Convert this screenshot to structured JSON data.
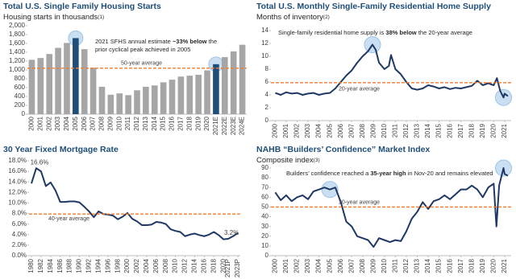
{
  "chart_data": [
    {
      "type": "bar",
      "title": "Total U.S. Single Family Housing Starts",
      "subtitle": "Housing starts in thousands",
      "footnote": "(1)",
      "categories": [
        "2000",
        "2001",
        "2002",
        "2003",
        "2004",
        "2005",
        "2006",
        "2007",
        "2008",
        "2009",
        "2010",
        "2011",
        "2012",
        "2013",
        "2014",
        "2015",
        "2016",
        "2017",
        "2018",
        "2019",
        "2020",
        "2021E",
        "2022E",
        "2023E",
        "2024E"
      ],
      "values": [
        1230,
        1270,
        1360,
        1500,
        1610,
        1720,
        1470,
        1050,
        620,
        440,
        470,
        430,
        540,
        620,
        650,
        720,
        780,
        850,
        870,
        890,
        990,
        1130,
        1290,
        1420,
        1570
      ],
      "color": "#a6a6a6",
      "highlight_color": "#1f4e79",
      "highlight_indices": [
        5,
        21
      ],
      "ylim": [
        0,
        2000
      ],
      "yticks": [
        0,
        200,
        400,
        600,
        800,
        {
          "value": 1000,
          "label": "1,000"
        },
        {
          "value": 1200,
          "label": "1,200"
        },
        {
          "value": 1400,
          "label": "1,400"
        },
        {
          "value": 1600,
          "label": "1,600"
        },
        {
          "value": 1800,
          "label": "1,800"
        },
        {
          "value": 2000,
          "label": "2,000"
        }
      ],
      "average": {
        "value": 1040,
        "label": "50-year average",
        "color": "#ed7d31"
      },
      "annotation": [
        [
          {
            "text": "2021 SFHS annual estimate "
          },
          {
            "text": "~33% below",
            "bold": true
          },
          {
            "text": " the"
          }
        ],
        [
          {
            "text": "prior cyclical peak achieved in 2005"
          }
        ]
      ]
    },
    {
      "type": "line",
      "title": "Total U.S. Monthly Single-Family Residential Home Supply",
      "subtitle": "Months of inventory",
      "footnote": "(2)",
      "x": [
        2000,
        2000.5,
        2001,
        2001.5,
        2002,
        2002.5,
        2003,
        2003.5,
        2004,
        2004.5,
        2005,
        2005.5,
        2006,
        2006.5,
        2007,
        2007.5,
        2008,
        2008.5,
        2008.9,
        2009.2,
        2009.5,
        2010,
        2010.4,
        2010.6,
        2011,
        2011.5,
        2012,
        2012.5,
        2013,
        2013.5,
        2014,
        2014.5,
        2015,
        2015.5,
        2016,
        2016.5,
        2017,
        2017.5,
        2018,
        2018.5,
        2019,
        2019.5,
        2020,
        2020.3,
        2020.6,
        2020.9,
        2021,
        2021.3
      ],
      "values": [
        4.3,
        4.0,
        4.4,
        4.2,
        4.3,
        4.0,
        4.2,
        4.3,
        4.0,
        4.2,
        4.3,
        5.0,
        6.0,
        7.0,
        7.8,
        9.0,
        10.0,
        10.8,
        11.8,
        11.0,
        9.0,
        8.0,
        8.5,
        10.2,
        8.0,
        7.2,
        6.0,
        5.0,
        4.8,
        5.0,
        5.5,
        5.3,
        5.0,
        5.2,
        4.9,
        5.1,
        5.0,
        5.2,
        5.4,
        6.2,
        5.5,
        5.8,
        5.5,
        6.6,
        4.6,
        3.6,
        4.2,
        3.8
      ],
      "color": "#1f3864",
      "highlight_indices": [
        18,
        45
      ],
      "xlim": [
        1999.6,
        2021.6
      ],
      "xticks": [
        2000,
        2001,
        2002,
        2003,
        2004,
        2005,
        2006,
        2007,
        2008,
        2009,
        2010,
        2011,
        2012,
        2013,
        2014,
        2015,
        2016,
        2017,
        2018,
        2019,
        2020,
        2021
      ],
      "ylim": [
        0,
        14
      ],
      "yticks": [
        0,
        2,
        4,
        6,
        8,
        10,
        12,
        14
      ],
      "average": {
        "value": 5.9,
        "label": "20-year average",
        "color": "#ed7d31"
      },
      "annotation": [
        [
          {
            "text": "Single-family residential home supply is "
          },
          {
            "text": "38% below",
            "bold": true
          },
          {
            "text": " the 20-year average"
          }
        ]
      ]
    },
    {
      "type": "line",
      "title": "30 Year Fixed Mortgage Rate",
      "x": [
        1980,
        1981,
        1982,
        1983,
        1984,
        1985,
        1986,
        1987,
        1988,
        1989,
        1990,
        1991,
        1992,
        1993,
        1994,
        1995,
        1996,
        1997,
        1998,
        1999,
        2000,
        2001,
        2002,
        2003,
        2004,
        2005,
        2006,
        2007,
        2008,
        2009,
        2010,
        2011,
        2012,
        2013,
        2014,
        2015,
        2016,
        2017,
        2018,
        2019,
        2020,
        2021,
        2022,
        2023
      ],
      "values": [
        13.7,
        16.6,
        16.0,
        13.2,
        13.9,
        12.4,
        10.2,
        10.2,
        10.3,
        10.3,
        10.1,
        9.3,
        8.4,
        7.3,
        8.4,
        7.9,
        7.8,
        7.6,
        6.9,
        7.4,
        8.1,
        7.0,
        6.5,
        5.8,
        5.8,
        5.9,
        6.4,
        6.3,
        6.0,
        5.0,
        4.7,
        4.5,
        3.7,
        4.0,
        4.2,
        3.9,
        3.7,
        4.0,
        4.5,
        3.9,
        3.1,
        3.2,
        3.7,
        4.3
      ],
      "value_labels": [
        null,
        "16.6%",
        null,
        null,
        null,
        null,
        null,
        null,
        null,
        null,
        null,
        null,
        null,
        null,
        null,
        null,
        null,
        null,
        null,
        null,
        null,
        null,
        null,
        null,
        null,
        null,
        null,
        null,
        null,
        null,
        null,
        null,
        null,
        null,
        null,
        null,
        null,
        null,
        null,
        null,
        null,
        "3.2%",
        null,
        null
      ],
      "color": "#1f3864",
      "highlight_indices": [],
      "xlim": [
        1979.5,
        2023.5
      ],
      "xticks": [
        1980,
        1982,
        1984,
        1986,
        1988,
        1990,
        1992,
        1994,
        1996,
        1998,
        2000,
        2002,
        2004,
        2006,
        2008,
        2010,
        2012,
        2014,
        2016,
        2018,
        2020,
        {
          "value": 2021,
          "label": "2021P"
        },
        {
          "value": 2023,
          "label": "2023P"
        }
      ],
      "ylim": [
        0,
        18
      ],
      "yticks": [
        {
          "value": 0,
          "label": "0.0%"
        },
        {
          "value": 2,
          "label": "2.0%"
        },
        {
          "value": 4,
          "label": "4.0%"
        },
        {
          "value": 6,
          "label": "6.0%"
        },
        {
          "value": 8,
          "label": "8.0%"
        },
        {
          "value": 10,
          "label": "10.0%"
        },
        {
          "value": 12,
          "label": "12.0%"
        },
        {
          "value": 14,
          "label": "14.0%"
        },
        {
          "value": 16,
          "label": "16.0%"
        },
        {
          "value": 18,
          "label": "18.0%"
        }
      ],
      "average": {
        "value": 7.9,
        "label": "40-year average",
        "color": "#ed7d31"
      }
    },
    {
      "type": "line",
      "title": "NAHB “Builders’ Confidence” Market Index",
      "subtitle": "Composite index",
      "footnote": "(3)",
      "x": [
        2000,
        2000.5,
        2001,
        2001.5,
        2002,
        2002.5,
        2003,
        2003.5,
        2004,
        2004.5,
        2005,
        2005.5,
        2006,
        2006.5,
        2007,
        2007.5,
        2008,
        2008.5,
        2009,
        2009.5,
        2010,
        2010.5,
        2011,
        2011.5,
        2012,
        2012.5,
        2013,
        2013.5,
        2014,
        2014.5,
        2015,
        2015.5,
        2016,
        2016.5,
        2017,
        2017.5,
        2018,
        2018.5,
        2019,
        2019.5,
        2020,
        2020.25,
        2020.5,
        2020.9,
        2021,
        2021.3
      ],
      "values": [
        65,
        57,
        62,
        56,
        60,
        62,
        58,
        66,
        68,
        70,
        68,
        70,
        55,
        35,
        30,
        20,
        18,
        16,
        9,
        18,
        16,
        14,
        16,
        15,
        25,
        38,
        45,
        55,
        48,
        56,
        58,
        62,
        58,
        63,
        68,
        68,
        72,
        68,
        60,
        70,
        74,
        30,
        72,
        90,
        84,
        82
      ],
      "color": "#1f3864",
      "highlight_indices": [
        10,
        43
      ],
      "xlim": [
        1999.6,
        2021.6
      ],
      "xticks": [
        2000,
        2001,
        2002,
        2003,
        2004,
        2005,
        2006,
        2007,
        2008,
        2009,
        2010,
        2011,
        2012,
        2013,
        2014,
        2015,
        2016,
        2017,
        2018,
        2019,
        2020,
        2021
      ],
      "ylim": [
        0,
        90
      ],
      "yticks": [
        0,
        10,
        20,
        30,
        40,
        50,
        60,
        70,
        80,
        90
      ],
      "average": {
        "value": 50,
        "label": "20-year average",
        "color": "#ed7d31"
      },
      "annotation": [
        [
          {
            "text": "Builders’ confidence reached a "
          },
          {
            "text": "35-year high",
            "bold": true
          },
          {
            "text": " in Nov-20 and remains elevated"
          }
        ]
      ]
    }
  ]
}
